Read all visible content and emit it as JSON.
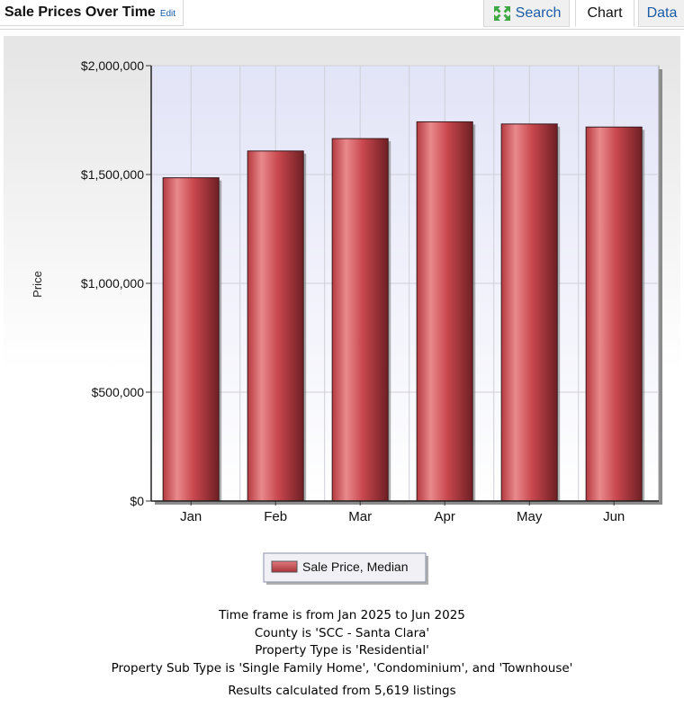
{
  "header": {
    "title": "Sale Prices Over Time",
    "edit_label": "Edit",
    "tabs": [
      {
        "label": "Search",
        "icon": "expand-icon"
      },
      {
        "label": "Chart",
        "active": true
      },
      {
        "label": "Data"
      }
    ]
  },
  "chart_data": {
    "type": "bar",
    "categories": [
      "Jan",
      "Feb",
      "Mar",
      "Apr",
      "May",
      "Jun"
    ],
    "series": [
      {
        "name": "Sale Price, Median",
        "values": [
          1485000,
          1608000,
          1665000,
          1742000,
          1732000,
          1718000
        ]
      }
    ],
    "ylabel": "Price",
    "xlabel": "",
    "ylim": [
      0,
      2000000
    ],
    "yticks": [
      0,
      500000,
      1000000,
      1500000,
      2000000
    ],
    "ytick_labels": [
      "$0",
      "$500,000",
      "$1,000,000",
      "$1,500,000",
      "$2,000,000"
    ],
    "grid": true,
    "legend_position": "bottom-center",
    "bar_color": "#c8474d"
  },
  "summary": {
    "lines": [
      "Time frame is from Jan 2025 to Jun 2025",
      "County is 'SCC - Santa Clara'",
      "Property Type is 'Residential'",
      "Property Sub Type is 'Single Family Home', 'Condominium', and 'Townhouse'"
    ],
    "results": "Results calculated from 5,619 listings"
  }
}
